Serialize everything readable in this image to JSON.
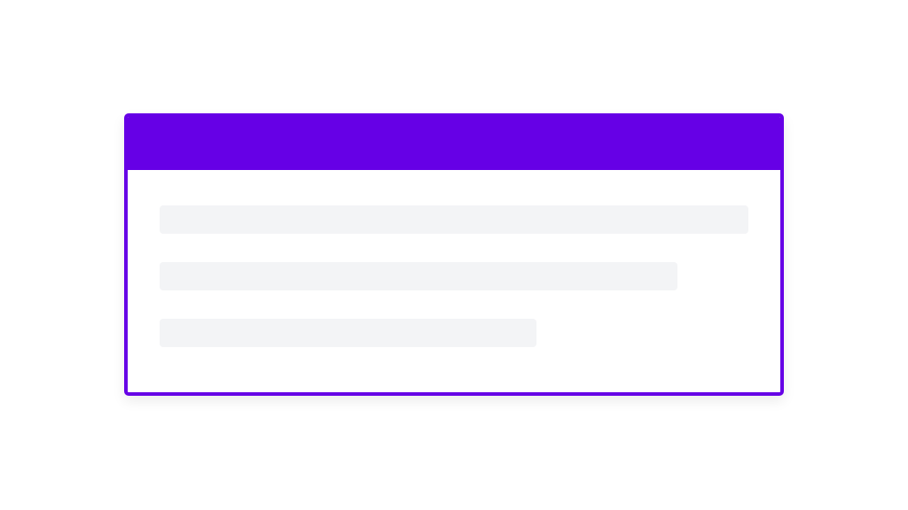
{
  "card": {
    "accent_color": "#6600e6",
    "placeholder_color": "#f3f4f6",
    "skeleton_lines": [
      {
        "fill_percent": 100
      },
      {
        "fill_percent": 88
      },
      {
        "fill_percent": 64
      }
    ]
  }
}
